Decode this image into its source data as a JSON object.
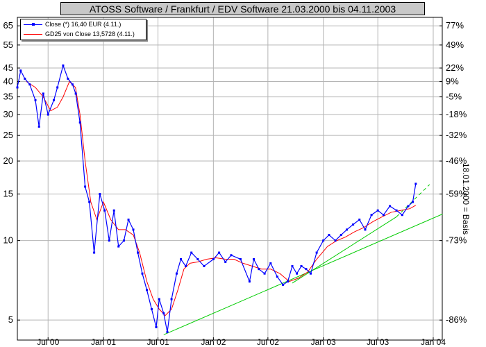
{
  "title": "ATOSS Software / Frankfurt / EDV Software 21.03.2000 bis 04.11.2003",
  "right_axis_label": "18.01.2000 = Basis",
  "legend": {
    "close": "Close (*) 16,40 EUR (4.11.)",
    "gd25": "GD25 von Close 13,5728 (4.11.)"
  },
  "colors": {
    "close": "#0000ff",
    "gd25": "#ff0000",
    "trend": "#00cc00",
    "grid": "#b4b4b4",
    "title_bg": "#c8c8c8"
  },
  "chart_data": {
    "type": "line",
    "title": "ATOSS Software / Frankfurt / EDV Software 21.03.2000 bis 04.11.2003",
    "y_scale": "log",
    "ylim": [
      4.2,
      70
    ],
    "xlim": [
      "2000-03-21",
      "2004-01-31"
    ],
    "x_ticks": [
      "Jul 00",
      "Jan 01",
      "Jul 01",
      "Jan 02",
      "Jul 02",
      "Jan 03",
      "Jul 03",
      "Jan 04"
    ],
    "y_ticks_left": [
      5,
      10,
      15,
      20,
      25,
      30,
      35,
      40,
      45,
      55,
      65
    ],
    "y_ticks_right": [
      "77%",
      "49%",
      "22%",
      "9%",
      "-5%",
      "-18%",
      "-32%",
      "-46%",
      "-59%",
      "-73%",
      "-86%"
    ],
    "y_ticks_right_values": [
      65,
      55,
      45,
      40,
      35,
      30,
      25,
      20,
      15,
      10,
      5
    ],
    "grid": true,
    "legend_position": "top-left",
    "series": [
      {
        "name": "Close (*) 16,40 EUR (4.11.)",
        "x": [
          "2000-03-21",
          "2000-04-01",
          "2000-04-15",
          "2000-05-01",
          "2000-05-20",
          "2000-06-01",
          "2000-06-15",
          "2000-07-01",
          "2000-07-20",
          "2000-08-01",
          "2000-08-20",
          "2000-09-05",
          "2000-09-20",
          "2000-10-01",
          "2000-10-15",
          "2000-11-01",
          "2000-11-15",
          "2000-12-01",
          "2000-12-20",
          "2001-01-05",
          "2001-01-20",
          "2001-02-05",
          "2001-02-20",
          "2001-03-10",
          "2001-03-25",
          "2001-04-10",
          "2001-04-25",
          "2001-05-10",
          "2001-05-25",
          "2001-06-10",
          "2001-06-25",
          "2001-07-05",
          "2001-07-20",
          "2001-08-01",
          "2001-08-15",
          "2001-09-01",
          "2001-09-15",
          "2001-10-01",
          "2001-10-20",
          "2001-11-10",
          "2001-12-01",
          "2002-01-01",
          "2002-01-20",
          "2002-02-10",
          "2002-03-01",
          "2002-04-01",
          "2002-05-01",
          "2002-05-15",
          "2002-06-01",
          "2002-06-20",
          "2002-07-10",
          "2002-08-01",
          "2002-08-20",
          "2002-09-05",
          "2002-09-20",
          "2002-10-05",
          "2002-10-20",
          "2002-11-05",
          "2002-11-20",
          "2002-12-10",
          "2003-01-01",
          "2003-01-20",
          "2003-02-10",
          "2003-03-01",
          "2003-03-20",
          "2003-04-10",
          "2003-05-01",
          "2003-05-20",
          "2003-06-10",
          "2003-07-01",
          "2003-07-20",
          "2003-08-10",
          "2003-09-01",
          "2003-09-20",
          "2003-10-10",
          "2003-10-25",
          "2003-11-04"
        ],
        "values": [
          38,
          44,
          41,
          39,
          34,
          27,
          36,
          30,
          34,
          38,
          46,
          41,
          39,
          36,
          28,
          16,
          14,
          9,
          15,
          13,
          10,
          13,
          9.5,
          10,
          12,
          11,
          9,
          7.5,
          6.5,
          5.5,
          4.7,
          6,
          5.3,
          4.5,
          6,
          7.5,
          8.5,
          8,
          9,
          8.5,
          8,
          8.5,
          9,
          8.3,
          8.8,
          8.5,
          7,
          8.5,
          7.8,
          7.5,
          8.2,
          7.3,
          6.8,
          7,
          8,
          7.5,
          8,
          7.8,
          7.5,
          9,
          10,
          10.5,
          10,
          10.5,
          11,
          11.5,
          12,
          11,
          12.5,
          13,
          12.5,
          13.5,
          13,
          12.5,
          13.5,
          14,
          16.4
        ]
      },
      {
        "name": "GD25 von Close 13,5728 (4.11.)",
        "x": [
          "2000-04-20",
          "2000-05-20",
          "2000-06-15",
          "2000-07-10",
          "2000-08-01",
          "2000-08-20",
          "2000-09-10",
          "2000-09-30",
          "2000-10-15",
          "2000-11-01",
          "2000-11-20",
          "2000-12-10",
          "2001-01-01",
          "2001-01-25",
          "2001-02-20",
          "2001-03-15",
          "2001-04-10",
          "2001-05-01",
          "2001-05-25",
          "2001-06-15",
          "2001-07-05",
          "2001-07-25",
          "2001-08-15",
          "2001-09-05",
          "2001-09-25",
          "2001-10-15",
          "2001-11-10",
          "2001-12-10",
          "2002-01-10",
          "2002-02-10",
          "2002-03-10",
          "2002-04-10",
          "2002-05-10",
          "2002-06-10",
          "2002-07-10",
          "2002-08-10",
          "2002-09-10",
          "2002-10-10",
          "2002-11-10",
          "2002-12-10",
          "2003-01-15",
          "2003-02-15",
          "2003-03-15",
          "2003-04-15",
          "2003-05-15",
          "2003-06-15",
          "2003-07-15",
          "2003-08-15",
          "2003-09-15",
          "2003-10-15",
          "2003-11-04"
        ],
        "values": [
          40,
          38,
          35,
          31,
          32,
          35,
          40,
          38,
          30,
          20,
          14,
          12,
          14,
          12,
          11,
          11,
          10.5,
          9,
          7,
          6,
          5.5,
          5.2,
          5.5,
          6.5,
          7.8,
          8.2,
          8.3,
          8.5,
          8.6,
          8.5,
          8.5,
          8.2,
          8,
          7.8,
          7.8,
          7.5,
          7,
          7.2,
          7.6,
          8.5,
          9.5,
          10,
          10.3,
          10.8,
          11.2,
          11.8,
          12.3,
          12.8,
          13,
          13.2,
          13.6
        ]
      }
    ],
    "trendlines": [
      {
        "style": "solid",
        "x": [
          "2001-07-20",
          "2004-02-01"
        ],
        "values": [
          4.4,
          12.6
        ]
      },
      {
        "style": "solid",
        "x": [
          "2002-09-20",
          "2003-09-01"
        ],
        "values": [
          6.9,
          12.3
        ]
      },
      {
        "style": "dashed",
        "x": [
          "2003-09-01",
          "2003-12-20"
        ],
        "values": [
          12.3,
          16.3
        ]
      }
    ]
  }
}
